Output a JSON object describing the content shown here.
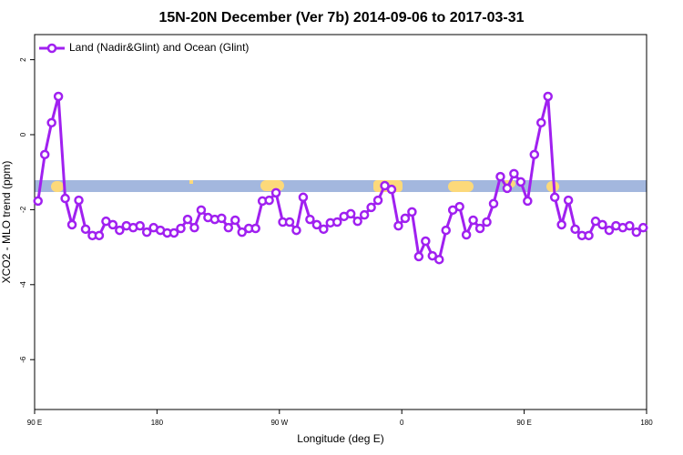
{
  "chart_data": {
    "type": "line",
    "title": "15N-20N December (Ver 7b)   2014-09-06 to 2017-03-31",
    "x_label": "Longitude (deg E)",
    "y_label": "XCO2 - MLO trend (ppm)",
    "x": [
      92.5,
      97.5,
      102.5,
      107.5,
      112.5,
      117.5,
      122.5,
      127.5,
      132.5,
      137.5,
      142.5,
      147.5,
      152.5,
      157.5,
      162.5,
      167.5,
      172.5,
      177.5,
      182.5,
      187.5,
      192.5,
      197.5,
      202.5,
      207.5,
      212.5,
      217.5,
      222.5,
      227.5,
      232.5,
      237.5,
      242.5,
      247.5,
      252.5,
      257.5,
      262.5,
      267.5,
      272.5,
      277.5,
      282.5,
      287.5,
      292.5,
      297.5,
      302.5,
      307.5,
      312.5,
      317.5,
      322.5,
      327.5,
      332.5,
      337.5,
      342.5,
      347.5,
      352.5,
      357.5,
      362.5,
      367.5,
      372.5,
      377.5,
      382.5,
      387.5,
      392.5,
      397.5,
      402.5,
      407.5,
      412.5,
      417.5,
      422.5,
      427.5,
      432.5,
      437.5,
      442.5,
      447.5,
      452.5,
      457.5,
      462.5,
      467.5,
      472.5,
      477.5,
      482.5,
      487.5,
      492.5,
      497.5,
      502.5,
      507.5,
      512.5,
      517.5,
      522.5,
      527.5,
      532.5,
      537.5
    ],
    "series": [
      {
        "name": "Land (Nadir&Glint) and Ocean (Glint)",
        "color": "#a020f0",
        "values": [
          -1.77,
          -0.53,
          0.32,
          1.02,
          -1.7,
          -2.4,
          -1.75,
          -2.52,
          -2.69,
          -2.69,
          -2.31,
          -2.4,
          -2.55,
          -2.43,
          -2.48,
          -2.43,
          -2.6,
          -2.48,
          -2.55,
          -2.62,
          -2.62,
          -2.5,
          -2.26,
          -2.48,
          -2.01,
          -2.21,
          -2.26,
          -2.23,
          -2.48,
          -2.28,
          -2.6,
          -2.5,
          -2.5,
          -1.77,
          -1.75,
          -1.55,
          -2.33,
          -2.33,
          -2.55,
          -1.67,
          -2.26,
          -2.4,
          -2.52,
          -2.35,
          -2.33,
          -2.18,
          -2.11,
          -2.31,
          -2.14,
          -1.94,
          -1.75,
          -1.36,
          -1.46,
          -2.43,
          -2.23,
          -2.06,
          -3.25,
          -2.84,
          -3.23,
          -3.33,
          -2.55,
          -2.01,
          -1.92,
          -2.67,
          -2.28,
          -2.5,
          -2.33,
          -1.84,
          -1.12,
          -1.43,
          -1.04,
          -1.26,
          -1.77,
          -0.53,
          0.32,
          1.02,
          -1.67,
          -2.4,
          -1.75,
          -2.52,
          -2.69,
          -2.69,
          -2.31,
          -2.4,
          -2.55,
          -2.43,
          -2.48,
          -2.43,
          -2.6,
          -2.48
        ]
      }
    ],
    "xlim": [
      90,
      540
    ],
    "xticks": [
      {
        "value": 90,
        "label": "90 E"
      },
      180,
      {
        "value": 270,
        "label": "90 W"
      },
      {
        "value": 360,
        "label": "0"
      },
      {
        "value": 450,
        "label": "90 E"
      },
      {
        "value": 540,
        "label": "180"
      }
    ],
    "ylim": [
      -7.33,
      2.67
    ],
    "yticks": [
      2,
      0,
      -2,
      -4,
      -6
    ],
    "legend": "top-left"
  }
}
